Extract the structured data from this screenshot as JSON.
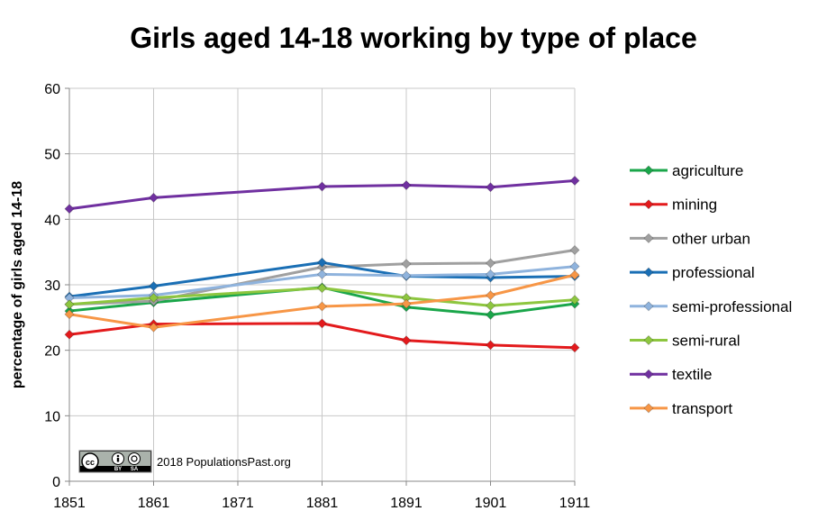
{
  "chart_data": {
    "type": "line",
    "title": "Girls aged 14-18 working by type of place",
    "xlabel": "",
    "ylabel": "percentage of girls aged 14-18",
    "xlim": [
      1851,
      1911
    ],
    "ylim": [
      0,
      60
    ],
    "x_ticks": [
      1851,
      1861,
      1871,
      1881,
      1891,
      1901,
      1911
    ],
    "y_ticks": [
      0,
      10,
      20,
      30,
      40,
      50,
      60
    ],
    "grid": true,
    "legend_position": "right",
    "x": [
      1851,
      1861,
      1881,
      1891,
      1901,
      1911
    ],
    "series": [
      {
        "name": "agriculture",
        "color": "#1aa64a",
        "values": [
          26.0,
          27.3,
          29.6,
          26.6,
          25.4,
          27.1
        ]
      },
      {
        "name": "mining",
        "color": "#e31a1c",
        "values": [
          22.4,
          24.0,
          24.1,
          21.5,
          20.8,
          20.4
        ]
      },
      {
        "name": "other urban",
        "color": "#a0a0a0",
        "values": [
          27.0,
          27.5,
          32.7,
          33.2,
          33.3,
          35.3
        ]
      },
      {
        "name": "professional",
        "color": "#1a6fb5",
        "values": [
          28.2,
          29.8,
          33.4,
          31.3,
          31.1,
          31.3
        ]
      },
      {
        "name": "semi-professional",
        "color": "#8fb3dd",
        "values": [
          28.0,
          28.4,
          31.6,
          31.4,
          31.6,
          32.8
        ]
      },
      {
        "name": "semi-rural",
        "color": "#8dc63f",
        "values": [
          27.0,
          28.0,
          29.5,
          28.0,
          26.8,
          27.7
        ]
      },
      {
        "name": "textile",
        "color": "#7030a0",
        "values": [
          41.6,
          43.3,
          45.0,
          45.2,
          44.9,
          45.9
        ]
      },
      {
        "name": "transport",
        "color": "#f79646",
        "values": [
          25.5,
          23.5,
          26.7,
          27.1,
          28.4,
          31.5
        ]
      }
    ],
    "annotation": "2018 PopulationsPast.org",
    "license_badge": {
      "name": "cc-by-sa-badge",
      "text": [
        "cc",
        "BY",
        "SA"
      ]
    }
  }
}
